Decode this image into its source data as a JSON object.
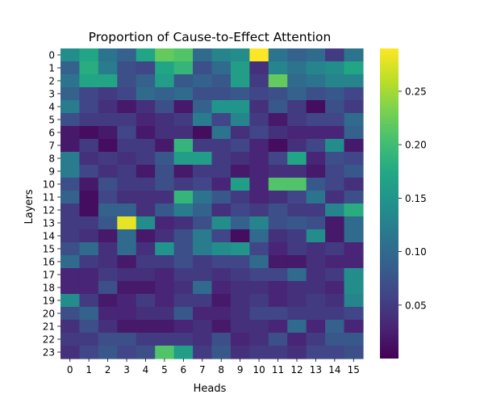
{
  "chart_data": {
    "type": "heatmap",
    "title": "Proportion of Cause-to-Effect Attention",
    "xlabel": "Heads",
    "ylabel": "Layers",
    "x_ticks": [
      "0",
      "1",
      "2",
      "3",
      "4",
      "5",
      "6",
      "7",
      "8",
      "9",
      "10",
      "11",
      "12",
      "13",
      "14",
      "15"
    ],
    "y_ticks": [
      "0",
      "1",
      "2",
      "3",
      "4",
      "5",
      "6",
      "7",
      "8",
      "9",
      "10",
      "11",
      "12",
      "13",
      "14",
      "15",
      "16",
      "17",
      "18",
      "19",
      "20",
      "21",
      "22",
      "23"
    ],
    "colormap": "viridis",
    "value_range": [
      0.0,
      0.29
    ],
    "colorbar_ticks": [
      "0.05",
      "0.10",
      "0.15",
      "0.20",
      "0.25"
    ],
    "colorbar_tick_values": [
      0.05,
      0.1,
      0.15,
      0.2,
      0.25
    ],
    "values": [
      [
        0.14,
        0.17,
        0.11,
        0.09,
        0.17,
        0.22,
        0.21,
        0.1,
        0.13,
        0.14,
        0.29,
        0.11,
        0.09,
        0.1,
        0.05,
        0.11
      ],
      [
        0.09,
        0.18,
        0.12,
        0.07,
        0.06,
        0.17,
        0.19,
        0.07,
        0.1,
        0.16,
        0.04,
        0.13,
        0.11,
        0.13,
        0.14,
        0.17
      ],
      [
        0.11,
        0.17,
        0.17,
        0.07,
        0.09,
        0.16,
        0.08,
        0.09,
        0.08,
        0.16,
        0.05,
        0.22,
        0.1,
        0.11,
        0.13,
        0.13
      ],
      [
        0.09,
        0.06,
        0.05,
        0.06,
        0.1,
        0.09,
        0.1,
        0.07,
        0.07,
        0.08,
        0.06,
        0.07,
        0.09,
        0.07,
        0.08,
        0.06
      ],
      [
        0.12,
        0.06,
        0.04,
        0.02,
        0.04,
        0.07,
        0.02,
        0.09,
        0.15,
        0.15,
        0.04,
        0.08,
        0.05,
        0.01,
        0.07,
        0.05
      ],
      [
        0.07,
        0.05,
        0.05,
        0.05,
        0.03,
        0.04,
        0.05,
        0.12,
        0.06,
        0.13,
        0.05,
        0.02,
        0.05,
        0.06,
        0.06,
        0.1
      ],
      [
        0.02,
        0.01,
        0.02,
        0.06,
        0.02,
        0.04,
        0.04,
        0.01,
        0.11,
        0.04,
        0.06,
        0.04,
        0.03,
        0.03,
        0.03,
        0.09
      ],
      [
        0.02,
        0.05,
        0.01,
        0.05,
        0.05,
        0.02,
        0.19,
        0.05,
        0.05,
        0.06,
        0.03,
        0.01,
        0.04,
        0.06,
        0.14,
        0.02
      ],
      [
        0.12,
        0.04,
        0.05,
        0.04,
        0.05,
        0.08,
        0.16,
        0.16,
        0.05,
        0.04,
        0.03,
        0.06,
        0.17,
        0.03,
        0.07,
        0.06
      ],
      [
        0.12,
        0.06,
        0.04,
        0.05,
        0.02,
        0.07,
        0.02,
        0.05,
        0.05,
        0.02,
        0.03,
        0.04,
        0.04,
        0.02,
        0.06,
        0.08
      ],
      [
        0.07,
        0.02,
        0.07,
        0.05,
        0.05,
        0.07,
        0.05,
        0.06,
        0.03,
        0.16,
        0.03,
        0.21,
        0.21,
        0.08,
        0.06,
        0.04
      ],
      [
        0.09,
        0.01,
        0.06,
        0.04,
        0.04,
        0.04,
        0.19,
        0.11,
        0.08,
        0.05,
        0.03,
        0.04,
        0.06,
        0.11,
        0.04,
        0.07
      ],
      [
        0.05,
        0.01,
        0.09,
        0.09,
        0.04,
        0.08,
        0.12,
        0.09,
        0.04,
        0.06,
        0.05,
        0.07,
        0.05,
        0.05,
        0.13,
        0.18
      ],
      [
        0.05,
        0.05,
        0.08,
        0.28,
        0.14,
        0.03,
        0.04,
        0.07,
        0.14,
        0.09,
        0.13,
        0.07,
        0.08,
        0.07,
        0.02,
        0.1
      ],
      [
        0.05,
        0.04,
        0.02,
        0.1,
        0.02,
        0.04,
        0.07,
        0.12,
        0.06,
        0.01,
        0.1,
        0.04,
        0.05,
        0.14,
        0.02,
        0.1
      ],
      [
        0.07,
        0.1,
        0.04,
        0.1,
        0.04,
        0.15,
        0.07,
        0.12,
        0.14,
        0.15,
        0.06,
        0.03,
        0.05,
        0.04,
        0.05,
        0.03
      ],
      [
        0.1,
        0.05,
        0.04,
        0.02,
        0.05,
        0.05,
        0.07,
        0.05,
        0.06,
        0.06,
        0.1,
        0.02,
        0.02,
        0.04,
        0.03,
        0.03
      ],
      [
        0.03,
        0.03,
        0.05,
        0.04,
        0.04,
        0.03,
        0.05,
        0.05,
        0.04,
        0.05,
        0.06,
        0.06,
        0.1,
        0.04,
        0.05,
        0.14
      ],
      [
        0.03,
        0.03,
        0.07,
        0.02,
        0.02,
        0.03,
        0.04,
        0.1,
        0.03,
        0.04,
        0.04,
        0.03,
        0.04,
        0.04,
        0.03,
        0.14
      ],
      [
        0.14,
        0.05,
        0.02,
        0.03,
        0.05,
        0.03,
        0.05,
        0.05,
        0.02,
        0.04,
        0.05,
        0.03,
        0.04,
        0.05,
        0.04,
        0.13
      ],
      [
        0.07,
        0.09,
        0.03,
        0.03,
        0.04,
        0.04,
        0.08,
        0.03,
        0.03,
        0.04,
        0.06,
        0.06,
        0.05,
        0.05,
        0.05,
        0.06
      ],
      [
        0.04,
        0.07,
        0.04,
        0.02,
        0.02,
        0.02,
        0.03,
        0.04,
        0.02,
        0.04,
        0.04,
        0.03,
        0.1,
        0.03,
        0.09,
        0.03
      ],
      [
        0.05,
        0.05,
        0.07,
        0.07,
        0.05,
        0.05,
        0.05,
        0.04,
        0.07,
        0.03,
        0.04,
        0.07,
        0.03,
        0.05,
        0.08,
        0.08
      ],
      [
        0.04,
        0.06,
        0.08,
        0.06,
        0.07,
        0.21,
        0.16,
        0.05,
        0.08,
        0.04,
        0.05,
        0.05,
        0.04,
        0.06,
        0.06,
        0.07
      ]
    ]
  }
}
